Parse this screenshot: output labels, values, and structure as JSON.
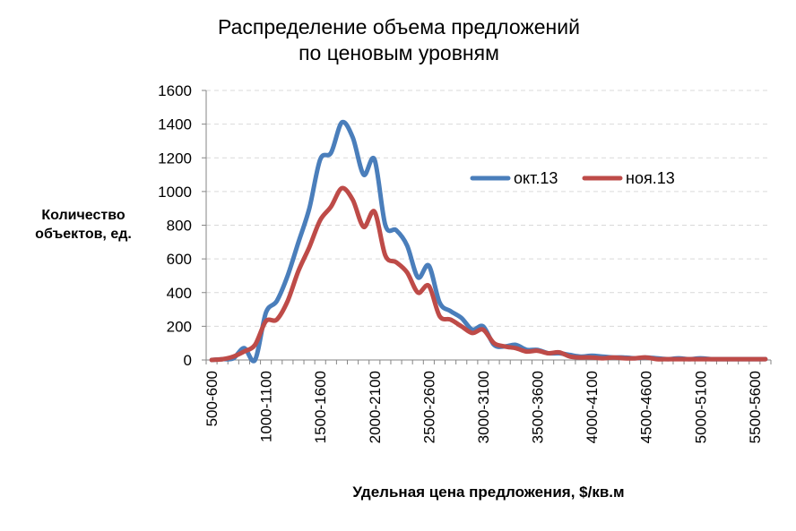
{
  "chart_data": {
    "type": "line",
    "title_lines": [
      "Распределение объема предложений",
      "по ценовым уровням"
    ],
    "ylabel_lines": [
      "Количество",
      "объектов, ед."
    ],
    "xlabel": "Удельная цена предложения, $/кв.м",
    "ylim": [
      0,
      1600
    ],
    "yticks": [
      0,
      200,
      400,
      600,
      800,
      1000,
      1200,
      1400,
      1600
    ],
    "ytick_labels": [
      "0",
      "200",
      "400",
      "600",
      "800",
      "1000",
      "1200",
      "1400",
      "1600"
    ],
    "grid": true,
    "legend_position": "right",
    "categories": [
      "500-600",
      "600-700",
      "700-800",
      "800-900",
      "900-1000",
      "1000-1100",
      "1100-1200",
      "1200-1300",
      "1300-1400",
      "1400-1500",
      "1500-1600",
      "1600-1700",
      "1700-1800",
      "1800-1900",
      "1900-2000",
      "2000-2100",
      "2100-2200",
      "2200-2300",
      "2300-2400",
      "2400-2500",
      "2500-2600",
      "2600-2700",
      "2700-2800",
      "2800-2900",
      "2900-3000",
      "3000-3100",
      "3100-3200",
      "3200-3300",
      "3300-3400",
      "3400-3500",
      "3500-3600",
      "3600-3700",
      "3700-3800",
      "3800-3900",
      "3900-4000",
      "4000-4100",
      "4100-4200",
      "4200-4300",
      "4300-4400",
      "4400-4500",
      "4500-4600",
      "4600-4700",
      "4700-4800",
      "4800-4900",
      "4900-5000",
      "5000-5100",
      "5100-5200",
      "5200-5300",
      "5300-5400",
      "5400-5500",
      "5500-5600",
      "5600-5700"
    ],
    "xtick_labels": [
      "500-600",
      "1000-1100",
      "1500-1600",
      "2000-2100",
      "2500-2600",
      "3000-3100",
      "3500-3600",
      "4000-4100",
      "4500-4600",
      "5000-5100",
      "5500-5600"
    ],
    "xtick_indices": [
      0,
      5,
      10,
      15,
      20,
      25,
      30,
      35,
      40,
      45,
      50
    ],
    "series": [
      {
        "name": "окт.13",
        "color": "#4a7ebb",
        "values": [
          0,
          5,
          10,
          70,
          0,
          280,
          350,
          500,
          700,
          900,
          1190,
          1230,
          1410,
          1320,
          1100,
          1190,
          800,
          770,
          680,
          490,
          560,
          340,
          290,
          250,
          180,
          200,
          90,
          80,
          90,
          60,
          60,
          40,
          40,
          30,
          20,
          25,
          20,
          15,
          15,
          10,
          15,
          10,
          5,
          10,
          5,
          10,
          5,
          5,
          5,
          5,
          5,
          5
        ]
      },
      {
        "name": "ноя.13",
        "color": "#be4b48",
        "values": [
          0,
          5,
          20,
          50,
          90,
          230,
          240,
          350,
          530,
          670,
          830,
          910,
          1020,
          950,
          790,
          880,
          620,
          580,
          520,
          400,
          440,
          260,
          240,
          200,
          160,
          180,
          100,
          80,
          70,
          50,
          55,
          40,
          45,
          20,
          15,
          15,
          10,
          15,
          10,
          10,
          15,
          5,
          5,
          5,
          5,
          5,
          5,
          5,
          5,
          5,
          5,
          5
        ]
      }
    ]
  }
}
